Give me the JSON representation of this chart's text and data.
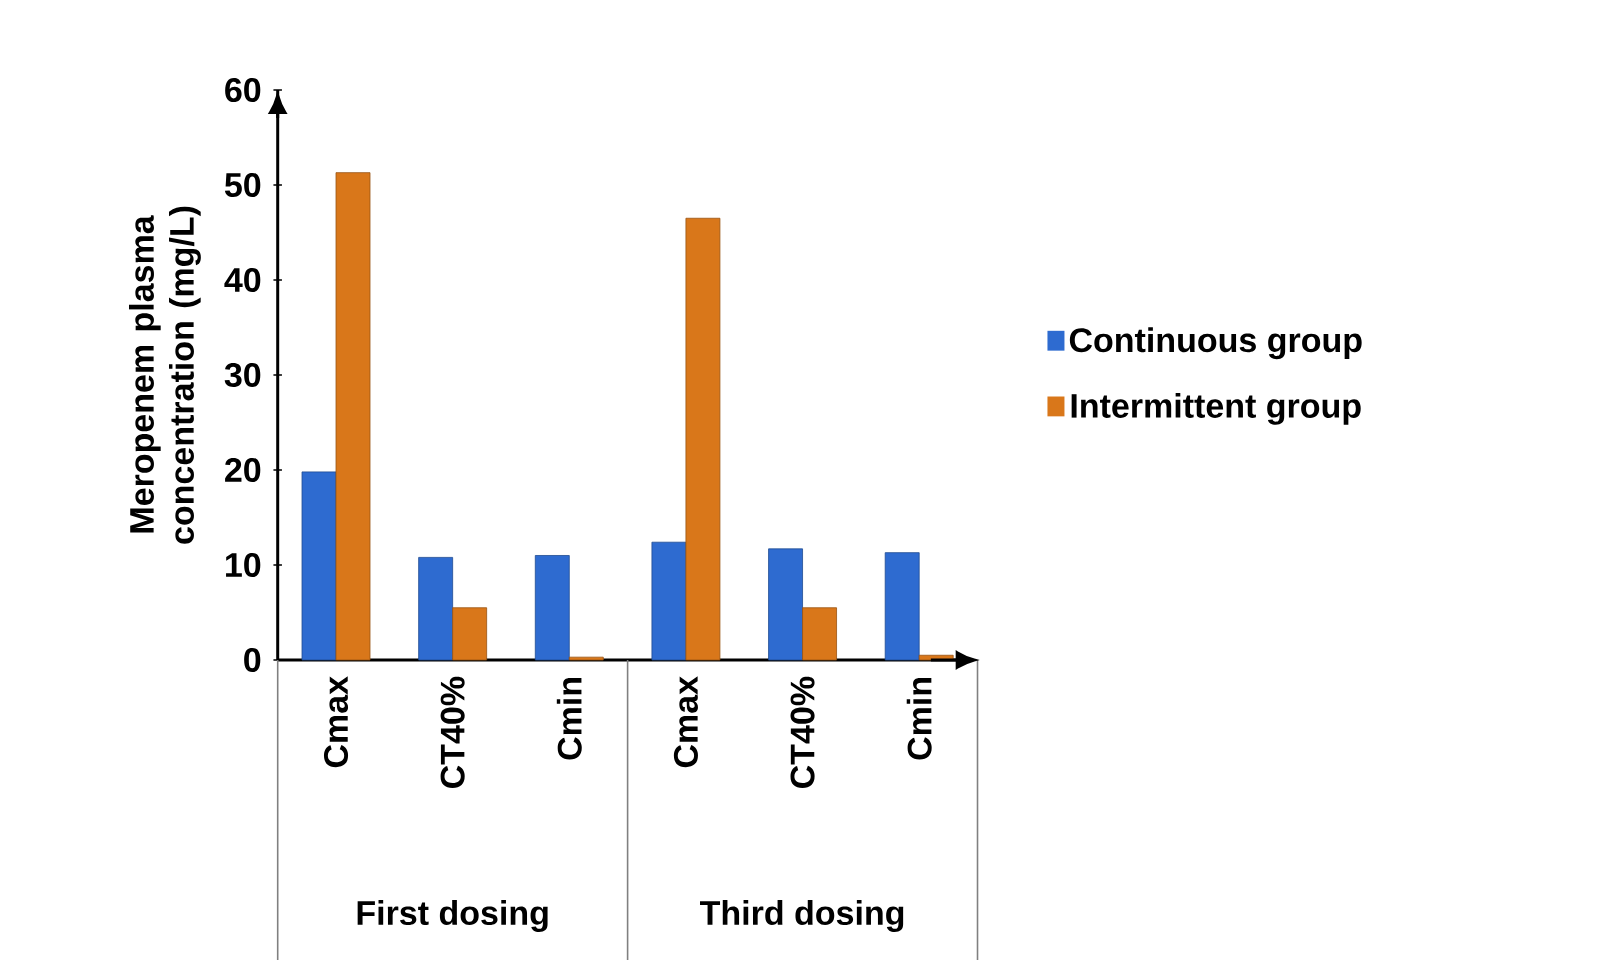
{
  "chart_data": {
    "type": "bar",
    "ylabel": "Meropenem plasma concentration (mg/L)",
    "categories": [
      "Cmax",
      "CT40%",
      "Cmin",
      "Cmax",
      "CT40%",
      "Cmin"
    ],
    "series": [
      {
        "name": "Continuous group",
        "color": "#2e6bd0",
        "values": [
          19.8,
          10.8,
          11.0,
          12.4,
          11.7,
          11.3
        ]
      },
      {
        "name": "Intermittent group",
        "color": "#d9771a",
        "values": [
          51.3,
          5.5,
          0.3,
          46.5,
          5.5,
          0.5
        ]
      }
    ],
    "annotations": [
      "First dosing",
      "Third dosing"
    ],
    "ylim": [
      0,
      60
    ],
    "yticks": [
      0,
      10,
      20,
      30,
      40,
      50,
      60
    ],
    "legend": "right"
  }
}
